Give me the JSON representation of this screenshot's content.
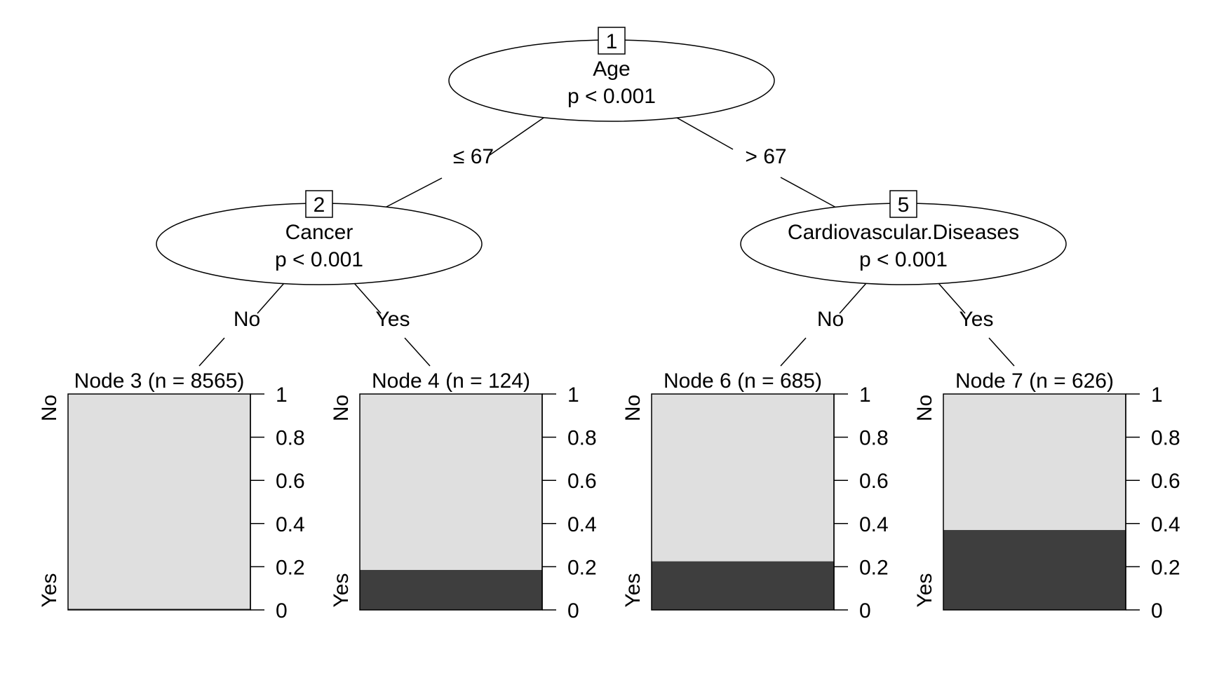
{
  "inner_nodes": [
    {
      "id": "1",
      "variable": "Age",
      "pvalue": "p < 0.001"
    },
    {
      "id": "2",
      "variable": "Cancer",
      "pvalue": "p < 0.001"
    },
    {
      "id": "5",
      "variable": "Cardiovascular.Diseases",
      "pvalue": "p < 0.001"
    }
  ],
  "edge_labels": [
    "≤ 67",
    "> 67",
    "No",
    "Yes",
    "No",
    "Yes"
  ],
  "terminal_nodes": [
    {
      "title": "Node 3 (n = 8565)",
      "yes_proportion": 0.005
    },
    {
      "title": "Node 4 (n = 124)",
      "yes_proportion": 0.185
    },
    {
      "title": "Node 6 (n = 685)",
      "yes_proportion": 0.225
    },
    {
      "title": "Node 7 (n = 626)",
      "yes_proportion": 0.37
    }
  ],
  "class_labels": {
    "top": "No",
    "bottom": "Yes"
  },
  "y_ticks": [
    "0",
    "0.2",
    "0.4",
    "0.6",
    "0.8",
    "1"
  ],
  "colors": {
    "no": "#dfdfdf",
    "yes": "#3e3e3e"
  }
}
